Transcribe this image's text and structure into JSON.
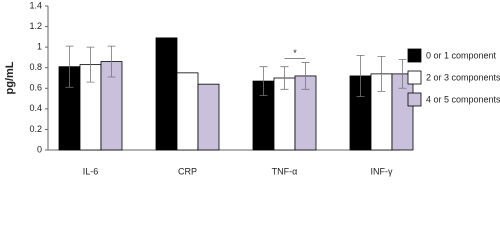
{
  "chart_data": {
    "type": "bar",
    "y_label": "pg/mL",
    "categories": [
      "IL-6",
      "CRP",
      "TNF-α",
      "INF-γ"
    ],
    "series": [
      {
        "name": "0 or 1 component",
        "color": "#000000",
        "values": [
          0.81,
          1.09,
          0.67,
          0.72
        ],
        "errors": [
          0.2,
          null,
          0.14,
          0.2
        ]
      },
      {
        "name": "2 or 3 components",
        "color": "#ffffff",
        "values": [
          0.83,
          0.75,
          0.7,
          0.74
        ],
        "errors": [
          0.17,
          null,
          0.11,
          0.17
        ]
      },
      {
        "name": "4 or 5 components",
        "color": "#c9c0dc",
        "values": [
          0.86,
          0.64,
          0.72,
          0.74
        ],
        "errors": [
          0.15,
          null,
          0.13,
          0.14
        ]
      }
    ],
    "annotation": "*",
    "ylim": [
      0,
      1.4
    ],
    "yticks": [
      0,
      0.2,
      0.4,
      0.6,
      0.8,
      1,
      1.2,
      1.4
    ],
    "legend": "right"
  }
}
